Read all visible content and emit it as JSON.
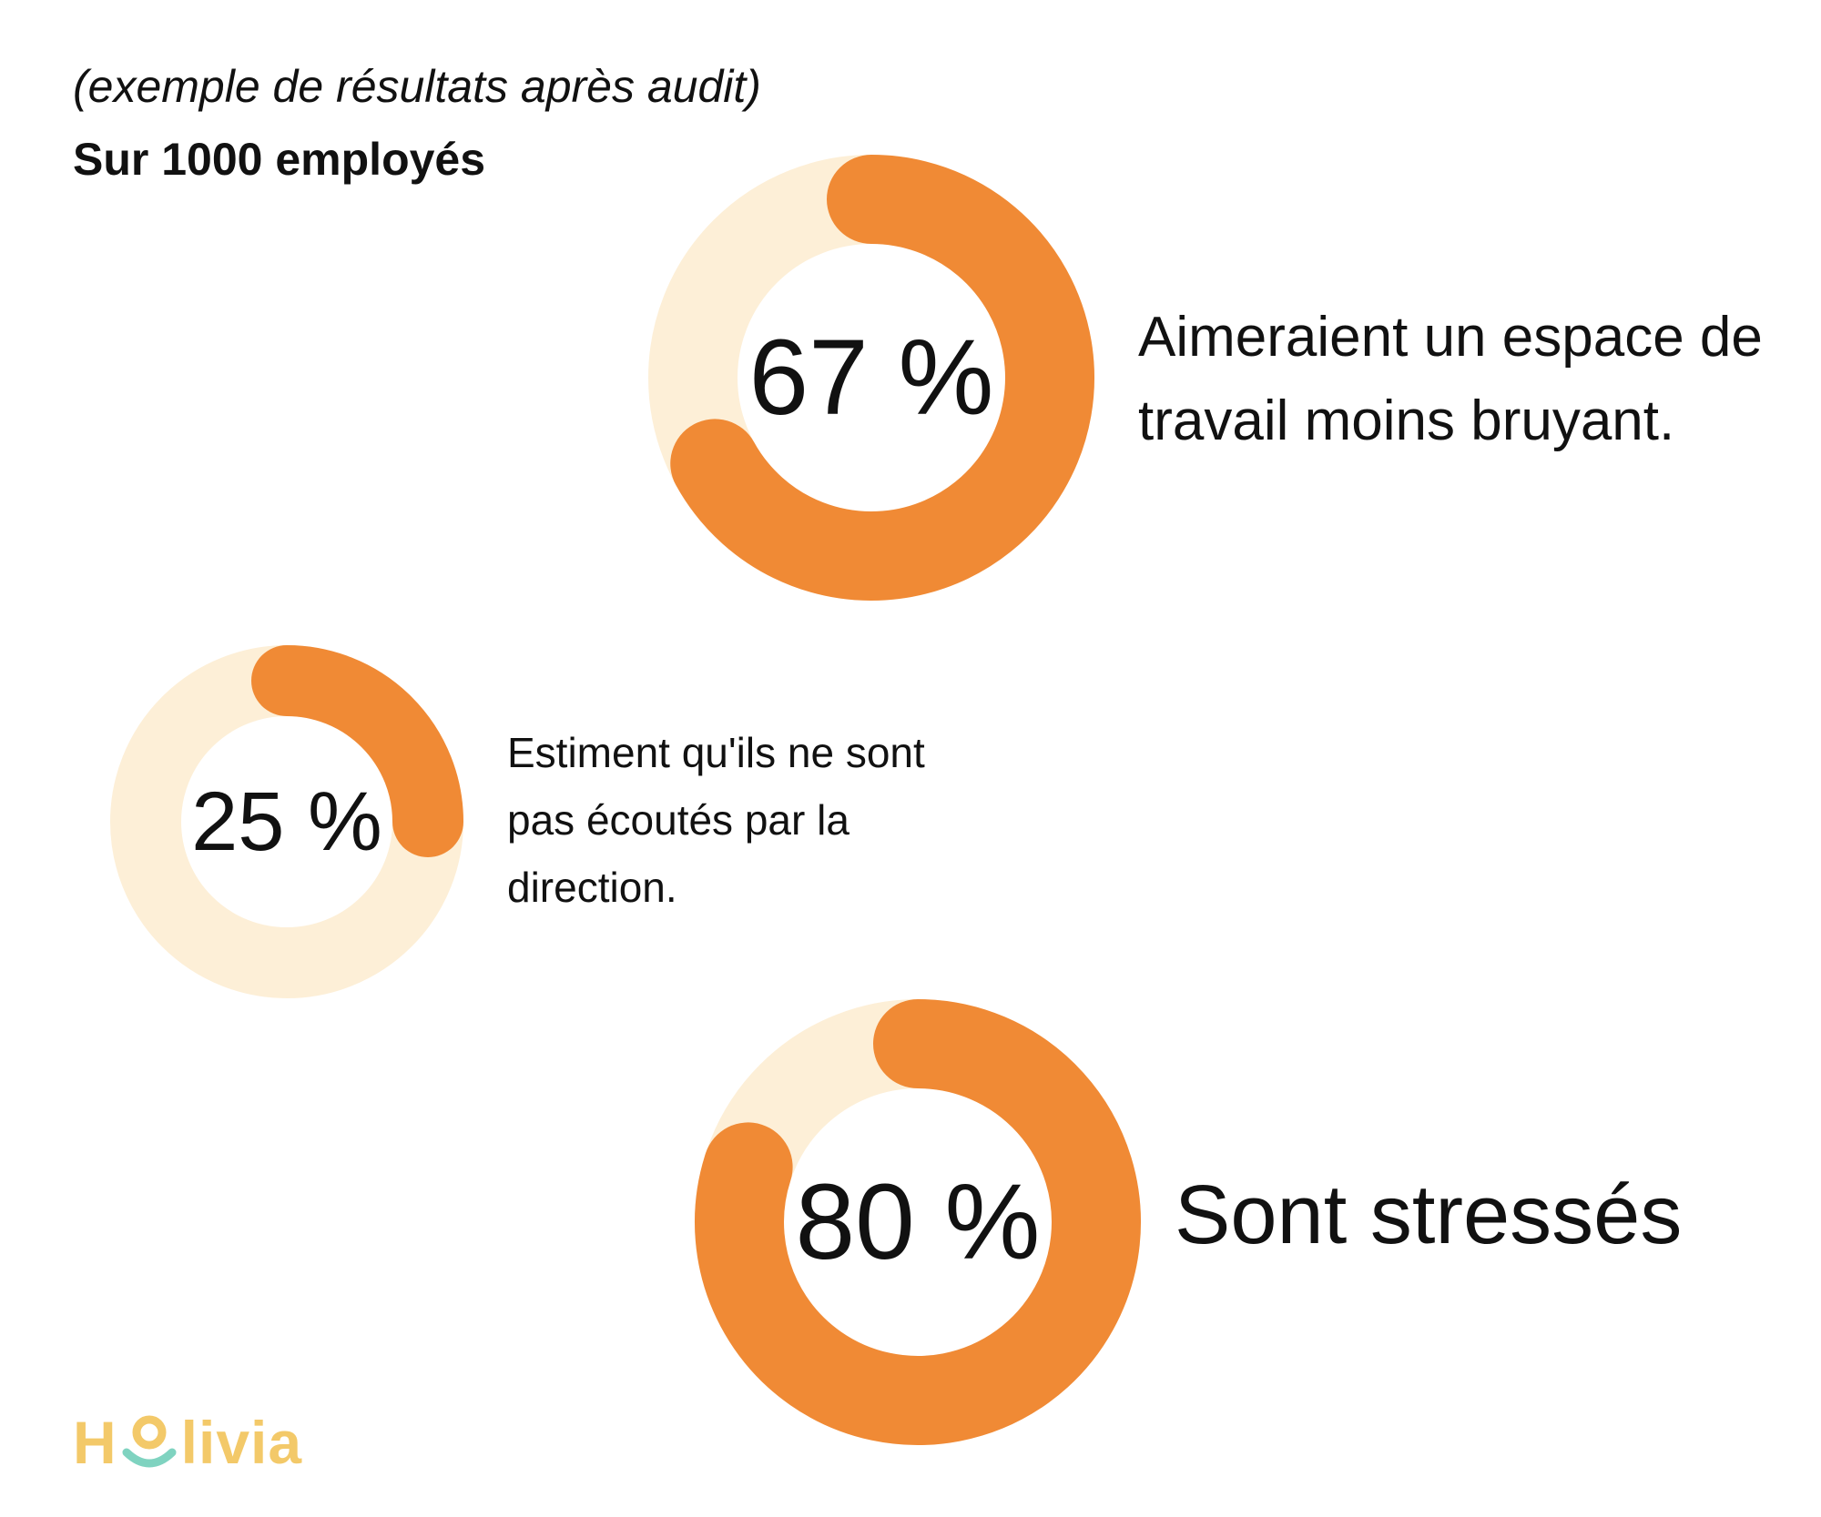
{
  "header": {
    "subtitle": "(exemple de résultats après audit)",
    "title": "Sur 1000 employés"
  },
  "chart_data": {
    "type": "donut",
    "items": [
      {
        "value": 67,
        "label": "67 %",
        "description_lines": [
          "Aimeraient un espace de",
          "travail moins bruyant."
        ]
      },
      {
        "value": 25,
        "label": "25 %",
        "description_lines": [
          "Estiment qu'ils ne sont",
          "pas écoutés par la",
          "direction."
        ]
      },
      {
        "value": 80,
        "label": "80 %",
        "description_lines": [
          "Sont stressés"
        ]
      }
    ],
    "colors": {
      "filled": "#f08a35",
      "track": "#fdefd7"
    }
  },
  "logo": {
    "pre": "H",
    "post": "livia",
    "colors": {
      "text": "#f3c969",
      "smile": "#7fd3c0",
      "dot": "#f3c969"
    }
  }
}
